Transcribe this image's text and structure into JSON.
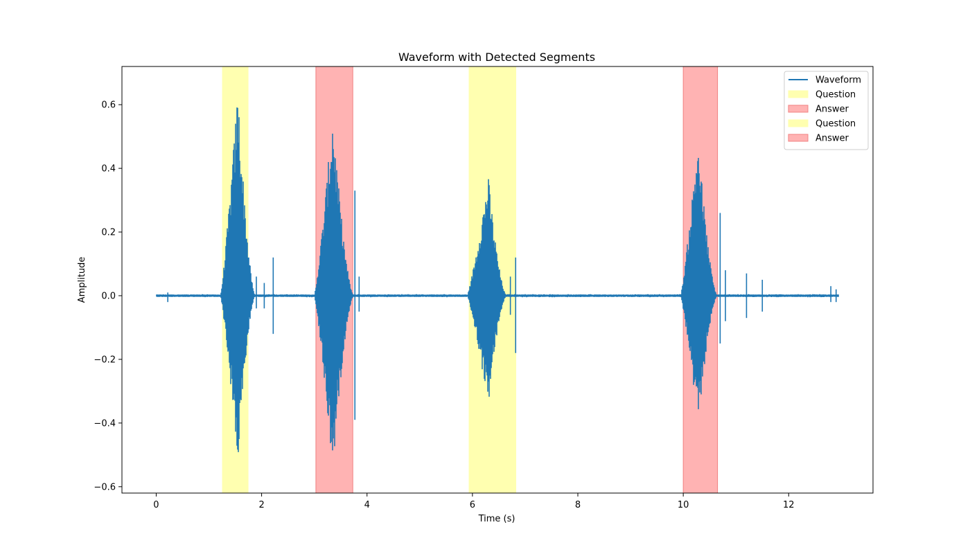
{
  "chart_data": {
    "type": "line",
    "title": "Waveform with Detected Segments",
    "xlabel": "Time (s)",
    "ylabel": "Amplitude",
    "xlim": [
      -0.65,
      13.6
    ],
    "ylim": [
      -0.62,
      0.72
    ],
    "xticks": [
      0,
      2,
      4,
      6,
      8,
      10,
      12
    ],
    "yticks": [
      -0.6,
      -0.4,
      -0.2,
      0.0,
      0.2,
      0.4,
      0.6
    ],
    "ytick_labels": [
      "−0.6",
      "−0.4",
      "−0.2",
      "0.0",
      "0.2",
      "0.4",
      "0.6"
    ],
    "grid": false,
    "legend_position": "top-right",
    "colors": {
      "waveform": "#1f77b4",
      "question": "#ffffb0",
      "answer": "#ffb3b3",
      "answer_edge": "#f08080"
    },
    "series": [
      {
        "name": "Waveform",
        "kind": "waveform",
        "x_range": [
          0,
          12.95
        ],
        "bursts": [
          {
            "start": 1.22,
            "end": 1.88,
            "peak_time": 1.55,
            "max": 0.66,
            "min": -0.54
          },
          {
            "start": 3.0,
            "end": 3.75,
            "peak_time": 3.35,
            "max": 0.58,
            "min": -0.56
          },
          {
            "start": 5.9,
            "end": 6.65,
            "peak_time": 6.3,
            "max": 0.38,
            "min": -0.35
          },
          {
            "start": 9.95,
            "end": 10.65,
            "peak_time": 10.28,
            "max": 0.51,
            "min": -0.42
          }
        ],
        "spikes": [
          {
            "t": 0.22,
            "max": 0.01,
            "min": -0.02
          },
          {
            "t": 1.9,
            "max": 0.06,
            "min": -0.04
          },
          {
            "t": 2.05,
            "max": 0.04,
            "min": -0.04
          },
          {
            "t": 2.22,
            "max": 0.12,
            "min": -0.12
          },
          {
            "t": 3.77,
            "max": 0.33,
            "min": -0.39
          },
          {
            "t": 3.85,
            "max": 0.06,
            "min": -0.05
          },
          {
            "t": 6.82,
            "max": 0.12,
            "min": -0.18
          },
          {
            "t": 6.72,
            "max": 0.06,
            "min": -0.06
          },
          {
            "t": 10.7,
            "max": 0.26,
            "min": -0.15
          },
          {
            "t": 10.8,
            "max": 0.08,
            "min": -0.08
          },
          {
            "t": 11.2,
            "max": 0.07,
            "min": -0.07
          },
          {
            "t": 11.5,
            "max": 0.05,
            "min": -0.05
          },
          {
            "t": 12.8,
            "max": 0.03,
            "min": -0.02
          },
          {
            "t": 12.9,
            "max": 0.02,
            "min": -0.02
          }
        ]
      },
      {
        "name": "Question",
        "kind": "span",
        "start": 1.25,
        "end": 1.75,
        "color": "#ffffb0"
      },
      {
        "name": "Answer",
        "kind": "span",
        "start": 3.03,
        "end": 3.73,
        "color": "#ffb3b3"
      },
      {
        "name": "Question",
        "kind": "span",
        "start": 5.93,
        "end": 6.83,
        "color": "#ffffb0"
      },
      {
        "name": "Answer",
        "kind": "span",
        "start": 10.0,
        "end": 10.65,
        "color": "#ffb3b3"
      }
    ]
  }
}
